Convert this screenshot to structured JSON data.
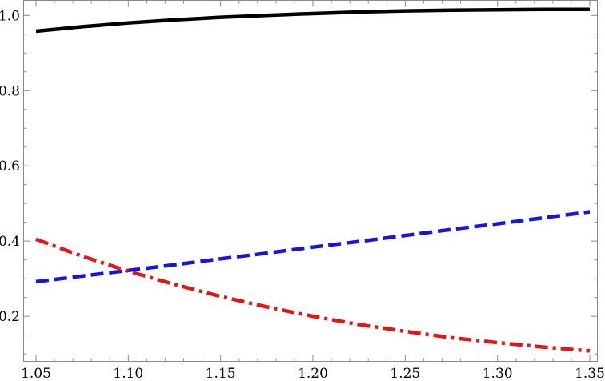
{
  "chart_data": {
    "type": "line",
    "title": "",
    "xlabel": "",
    "ylabel": "",
    "xlim": [
      1.05,
      1.35
    ],
    "ylim": [
      0.08,
      1.04
    ],
    "x_ticks": [
      "1.05",
      "1.10",
      "1.15",
      "1.20",
      "1.25",
      "1.30",
      "1.35"
    ],
    "y_ticks": [
      "0.2",
      "0.4",
      "0.6",
      "0.8",
      "1.0"
    ],
    "grid": false,
    "legend": "none",
    "x": [
      1.05,
      1.075,
      1.1,
      1.125,
      1.15,
      1.175,
      1.2,
      1.225,
      1.25,
      1.275,
      1.3,
      1.325,
      1.35
    ],
    "series": [
      {
        "color": "#000000",
        "style": "solid",
        "values": [
          0.958,
          0.97,
          0.98,
          0.988,
          0.995,
          1.0,
          1.005,
          1.009,
          1.012,
          1.014,
          1.015,
          1.016,
          1.016
        ]
      },
      {
        "color": "#1414e6",
        "style": "dashed",
        "values": [
          0.292,
          0.307,
          0.322,
          0.337,
          0.353,
          0.368,
          0.384,
          0.399,
          0.415,
          0.431,
          0.446,
          0.462,
          0.478
        ]
      },
      {
        "color": "#e61414",
        "style": "dashdot",
        "values": [
          0.405,
          0.36,
          0.32,
          0.285,
          0.253,
          0.225,
          0.2,
          0.178,
          0.16,
          0.143,
          0.13,
          0.118,
          0.108
        ]
      }
    ]
  }
}
